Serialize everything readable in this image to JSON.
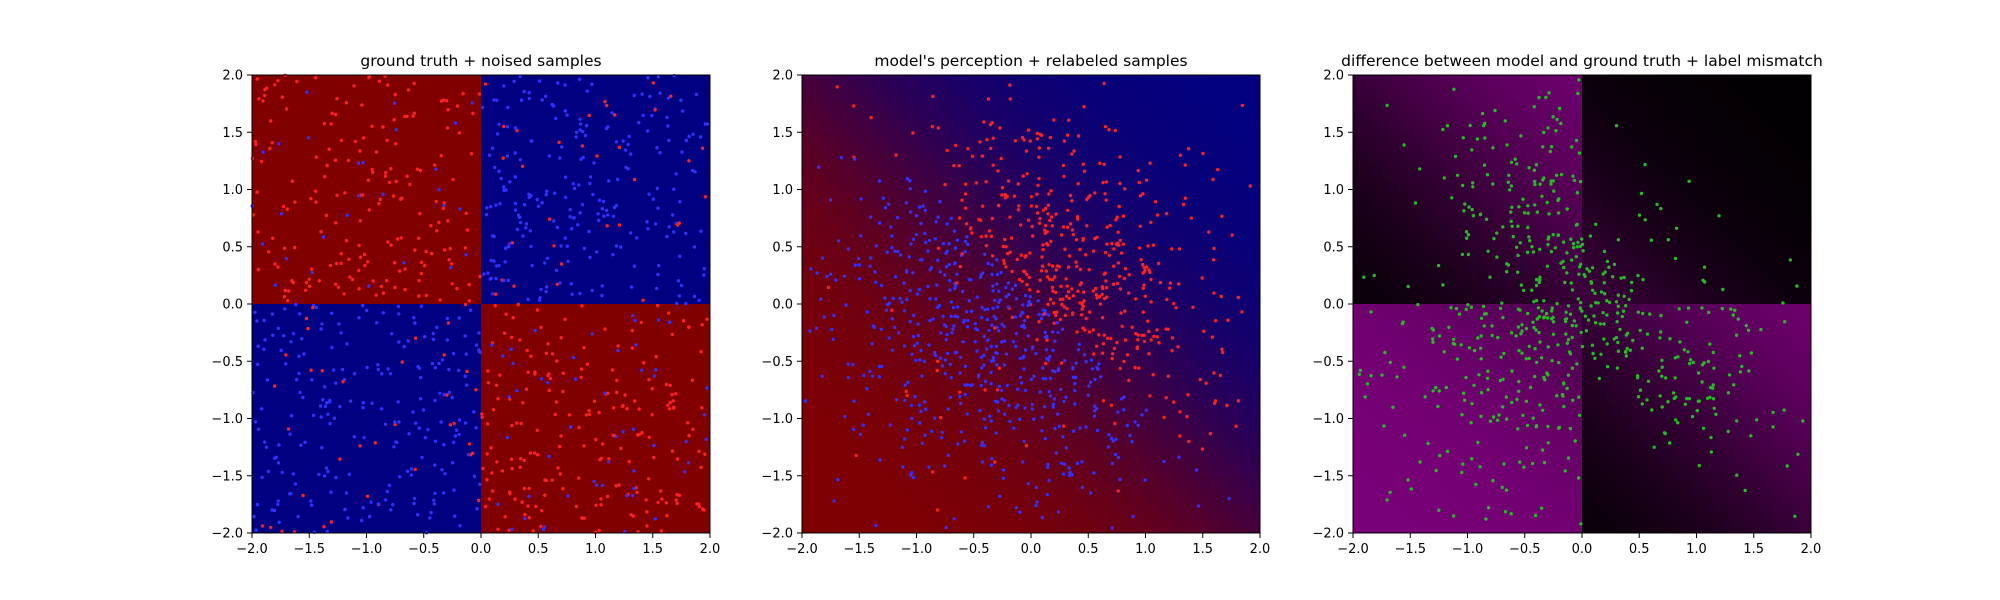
{
  "chart_data": [
    {
      "type": "heatmap",
      "title": "ground truth + noised samples",
      "xlabel": "",
      "ylabel": "",
      "xlim": [
        -2.0,
        2.0
      ],
      "ylim": [
        -2.0,
        2.0
      ],
      "x_ticks": [
        "−2.0",
        "−1.5",
        "−1.0",
        "−0.5",
        "0.0",
        "0.5",
        "1.0",
        "1.5",
        "2.0"
      ],
      "y_ticks": [
        "2.0",
        "1.5",
        "1.0",
        "0.5",
        "0.0",
        "−0.5",
        "−1.0",
        "−1.5",
        "−2.0"
      ],
      "grid": false,
      "background": "ground truth: sign(x·y); x·y < 0 → dark red, x·y > 0 → dark blue",
      "region_colors": {
        "xy_negative": "#800000",
        "xy_positive": "#000080"
      },
      "points": {
        "count": 1000,
        "distribution": "uniform on [-2,2]×[-2,2]",
        "marker": "small dots",
        "colors": [
          "#ff2020",
          "#3030ff"
        ],
        "label_noise": "about 15% of labels flipped"
      }
    },
    {
      "type": "heatmap",
      "title": "model's perception + relabeled samples",
      "xlabel": "",
      "ylabel": "",
      "xlim": [
        -2.0,
        2.0
      ],
      "ylim": [
        -2.0,
        2.0
      ],
      "x_ticks": [
        "−2.0",
        "−1.5",
        "−1.0",
        "−0.5",
        "0.0",
        "0.5",
        "1.0",
        "1.5",
        "2.0"
      ],
      "y_ticks": [
        "2.0",
        "1.5",
        "1.0",
        "0.5",
        "0.0",
        "−0.5",
        "−1.0",
        "−1.5",
        "−2.0"
      ],
      "grid": false,
      "background": "model prediction: smooth diagonal gradient, red toward lower-left, blue toward upper-right",
      "region_colors": {
        "red": "#800000",
        "blue": "#000080"
      },
      "points": {
        "count": 1000,
        "distribution": "gaussian around origin, sigma ≈ 0.85",
        "marker": "small dots",
        "colors": [
          "#ff2020",
          "#3030ff"
        ]
      }
    },
    {
      "type": "heatmap",
      "title": "difference between model and ground truth + label mismatch",
      "xlabel": "",
      "ylabel": "",
      "xlim": [
        -2.0,
        2.0
      ],
      "ylim": [
        -2.0,
        2.0
      ],
      "x_ticks": [
        "−2.0",
        "−1.5",
        "−1.0",
        "−0.5",
        "0.0",
        "0.5",
        "1.0",
        "1.5",
        "2.0"
      ],
      "y_ticks": [
        "2.0",
        "1.5",
        "1.0",
        "0.5",
        "0.0",
        "−0.5",
        "−1.0",
        "−1.5",
        "−2.0"
      ],
      "grid": false,
      "background": "|model − ground truth|, black (0) to purple (1)",
      "region_colors": {
        "low": "#000000",
        "high": "#800080"
      },
      "points": {
        "count": 600,
        "distribution": "samples whose label disagrees with model",
        "marker": "small dots",
        "colors": [
          "#22bb22"
        ]
      }
    }
  ]
}
